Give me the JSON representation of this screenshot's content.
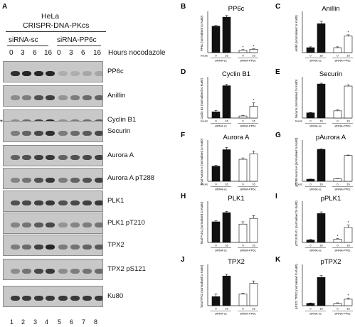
{
  "panel_a": {
    "letter": "A",
    "cell_line": "HeLa",
    "construct": "CRISPR-DNA-PKcs",
    "groups": [
      "siRNA-sc",
      "siRNA-PP6c"
    ],
    "timepoints": [
      "0",
      "3",
      "6",
      "16",
      "0",
      "3",
      "6",
      "16"
    ],
    "time_unit": "Hours nocodazole",
    "asterisk": "*",
    "blots": [
      {
        "label": "PP6c",
        "intensity": [
          0.9,
          0.95,
          0.95,
          0.95,
          0.15,
          0.15,
          0.2,
          0.2
        ]
      },
      {
        "label": "Anillin",
        "intensity": [
          0.35,
          0.45,
          0.7,
          0.8,
          0.3,
          0.45,
          0.55,
          0.6
        ]
      },
      {
        "label": "Cyclin B1",
        "intensity": [
          0.35,
          0.55,
          0.8,
          0.95,
          0.35,
          0.45,
          0.55,
          0.65
        ]
      },
      {
        "label": "Securin",
        "intensity": [
          0.45,
          0.6,
          0.75,
          0.9,
          0.45,
          0.55,
          0.65,
          0.75
        ]
      },
      {
        "label": "Aurora A",
        "intensity": [
          0.6,
          0.7,
          0.8,
          0.85,
          0.6,
          0.7,
          0.75,
          0.8
        ]
      },
      {
        "label": "Aurora A pT288",
        "intensity": [
          0.4,
          0.5,
          0.7,
          0.85,
          0.45,
          0.6,
          0.7,
          0.8
        ]
      },
      {
        "label": "PLK1",
        "intensity": [
          0.7,
          0.75,
          0.8,
          0.85,
          0.7,
          0.75,
          0.8,
          0.85
        ]
      },
      {
        "label": "PLK1 pT210",
        "intensity": [
          0.4,
          0.5,
          0.65,
          0.75,
          0.3,
          0.4,
          0.45,
          0.5
        ]
      },
      {
        "label": "TPX2",
        "intensity": [
          0.45,
          0.55,
          0.8,
          0.95,
          0.45,
          0.5,
          0.6,
          0.65
        ]
      },
      {
        "label": "TPX2 pS121",
        "intensity": [
          0.35,
          0.5,
          0.75,
          0.85,
          0.35,
          0.45,
          0.5,
          0.55
        ]
      },
      {
        "label": "Ku80",
        "intensity": [
          0.85,
          0.85,
          0.85,
          0.85,
          0.85,
          0.85,
          0.85,
          0.85
        ]
      }
    ],
    "lanes": [
      "1",
      "2",
      "3",
      "4",
      "5",
      "6",
      "7",
      "8"
    ]
  },
  "chart_data": [
    {
      "type": "bar",
      "panel": "B",
      "title": "PP6c",
      "ylabel": "PP6c (normalised to Ku80)",
      "x_label_prefix": "hours",
      "x": [
        "0",
        "16",
        "0",
        "16"
      ],
      "groups": [
        "siRNA-sc",
        "siRNA-PP6c"
      ],
      "values": [
        1.6,
        2.15,
        0.15,
        0.2
      ],
      "errors": [
        0.05,
        0.1,
        0.03,
        0.03
      ],
      "ylim": [
        0,
        2.5
      ],
      "asterisks": [
        false,
        false,
        true,
        true
      ]
    },
    {
      "type": "bar",
      "panel": "C",
      "title": "Anillin",
      "ylabel": "Anillin (normalised to Ku80)",
      "x": [
        "0",
        "16",
        "0",
        "16"
      ],
      "groups": [
        "siRNA-sc",
        "siRNA-PP6c"
      ],
      "values": [
        0.3,
        1.75,
        0.3,
        1.0
      ],
      "errors": [
        0.05,
        0.15,
        0.05,
        0.08
      ],
      "ylim": [
        0,
        2.5
      ],
      "asterisks": [
        false,
        false,
        false,
        true
      ]
    },
    {
      "type": "bar",
      "panel": "D",
      "title": "Cyclin B1",
      "ylabel": "Cyclin B1 (normalised to Ku80)",
      "x_label_prefix": "hours",
      "x": [
        "0",
        "16",
        "0",
        "16"
      ],
      "groups": [
        "siRNA-sc",
        "siRNA-PP6c"
      ],
      "values": [
        0.45,
        2.35,
        0.15,
        0.85
      ],
      "errors": [
        0.1,
        0.1,
        0.05,
        0.25
      ],
      "ylim": [
        0,
        3
      ],
      "asterisks": [
        false,
        false,
        false,
        true
      ]
    },
    {
      "type": "bar",
      "panel": "E",
      "title": "Securin",
      "ylabel": "Securin (normalised to Ku80)",
      "x_label_prefix": "hours",
      "x": [
        "0",
        "16",
        "0",
        "16"
      ],
      "groups": [
        "siRNA-sc",
        "siRNA-PP6c"
      ],
      "values": [
        0.25,
        1.65,
        0.35,
        1.55
      ],
      "errors": [
        0.02,
        0.04,
        0.04,
        0.06
      ],
      "ylim": [
        0,
        2
      ],
      "asterisks": [
        false,
        false,
        false,
        false
      ]
    },
    {
      "type": "bar",
      "panel": "F",
      "title": "Aurora A",
      "ylabel": "Total Aurora A (normalised to Ku80)",
      "x_label_prefix": "hours",
      "x": [
        "0",
        "16",
        "0",
        "16"
      ],
      "groups": [
        "siRNA-sc",
        "siRNA-PP6c"
      ],
      "values": [
        0.55,
        1.15,
        0.8,
        1.0
      ],
      "errors": [
        0.03,
        0.08,
        0.05,
        0.1
      ],
      "ylim": [
        0,
        1.5
      ],
      "asterisks": [
        false,
        false,
        false,
        false
      ]
    },
    {
      "type": "bar",
      "panel": "G",
      "title": "pAurora A",
      "ylabel": "pT288 Aurora A (normalised to Ku80)",
      "x_label_prefix": "hours",
      "x": [
        "0",
        "16",
        "0",
        "16"
      ],
      "groups": [
        "siRNA-sc",
        "siRNA-PP6c"
      ],
      "values": [
        0.2,
        3.1,
        0.25,
        2.5
      ],
      "errors": [
        0.02,
        0.04,
        0.03,
        0.05
      ],
      "ylim": [
        0,
        4
      ],
      "asterisks": [
        false,
        false,
        false,
        false
      ]
    },
    {
      "type": "bar",
      "panel": "H",
      "title": "PLK1",
      "ylabel": "Total PLK1 (normalised to Ku80)",
      "x": [
        "0",
        "16",
        "0",
        "16"
      ],
      "groups": [
        "siRNA-sc",
        "siRNA-PP6c"
      ],
      "values": [
        0.9,
        1.3,
        0.8,
        1.05
      ],
      "errors": [
        0.05,
        0.05,
        0.1,
        0.12
      ],
      "ylim": [
        0,
        1.8
      ],
      "asterisks": [
        false,
        false,
        false,
        false
      ]
    },
    {
      "type": "bar",
      "panel": "I",
      "title": "pPLK1",
      "ylabel": "pT210 PLK1 (normalised to Ku80)",
      "x": [
        "0",
        "16",
        "0",
        "16"
      ],
      "groups": [
        "siRNA-sc",
        "siRNA-PP6c"
      ],
      "values": [
        0.15,
        1.75,
        0.2,
        0.9
      ],
      "errors": [
        0.03,
        0.1,
        0.03,
        0.15
      ],
      "ylim": [
        0,
        2.5
      ],
      "asterisks": [
        false,
        false,
        true,
        true
      ]
    },
    {
      "type": "bar",
      "panel": "J",
      "title": "TPX2",
      "ylabel": "Total TPX2 (normalised to Ku80)",
      "x": [
        "0",
        "16",
        "0",
        "16"
      ],
      "groups": [
        "siRNA-sc",
        "siRNA-PP6c"
      ],
      "values": [
        0.55,
        1.8,
        0.7,
        1.35
      ],
      "errors": [
        0.15,
        0.1,
        0.05,
        0.15
      ],
      "ylim": [
        0,
        2.5
      ],
      "asterisks": [
        false,
        false,
        false,
        false
      ]
    },
    {
      "type": "bar",
      "panel": "K",
      "title": "pTPX2",
      "ylabel": "pS121 TPX2 (normalised to Ku80)",
      "x": [
        "0",
        "16",
        "0",
        "16"
      ],
      "groups": [
        "siRNA-sc",
        "siRNA-PP6c"
      ],
      "values": [
        0.2,
        2.4,
        0.2,
        0.55
      ],
      "errors": [
        0.03,
        0.15,
        0.04,
        0.1
      ],
      "ylim": [
        0,
        3.5
      ],
      "asterisks": [
        false,
        false,
        false,
        true
      ]
    }
  ],
  "colors": {
    "filled_bar": "#111111",
    "open_bar": "#ffffff",
    "band": "#1e1e1e",
    "blot_bg": "#c8c8c8"
  }
}
